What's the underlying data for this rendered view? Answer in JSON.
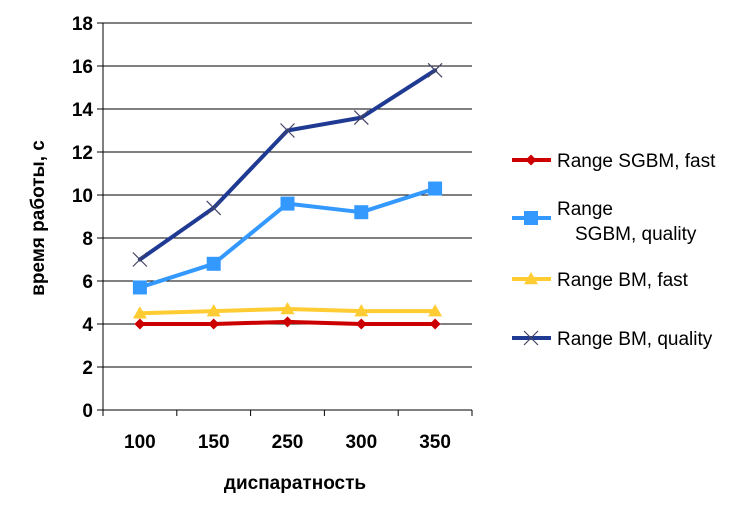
{
  "chart_data": {
    "type": "line",
    "categories": [
      "100",
      "150",
      "250",
      "300",
      "350"
    ],
    "series": [
      {
        "name": "Range SGBM, fast",
        "values": [
          4.0,
          4.0,
          4.1,
          4.0,
          4.0
        ],
        "color": "#CC0000",
        "marker": "diamond"
      },
      {
        "name": "Range SGBM, quality",
        "values": [
          5.7,
          6.8,
          9.6,
          9.2,
          10.3
        ],
        "color": "#3399FF",
        "marker": "square"
      },
      {
        "name": "Range BM, fast",
        "values": [
          4.5,
          4.6,
          4.7,
          4.6,
          4.6
        ],
        "color": "#FFCC33",
        "marker": "triangle"
      },
      {
        "name": "Range BM, quality",
        "values": [
          7.0,
          9.4,
          13.0,
          13.6,
          15.8
        ],
        "color": "#1F3A93",
        "marker": "x"
      }
    ],
    "xlabel": "диспаратность",
    "ylabel": "время работы, с",
    "ylim": [
      0,
      18
    ],
    "yticks": [
      "0",
      "2",
      "4",
      "6",
      "8",
      "10",
      "12",
      "14",
      "16",
      "18"
    ],
    "grid": "horizontal",
    "legend": "right"
  }
}
